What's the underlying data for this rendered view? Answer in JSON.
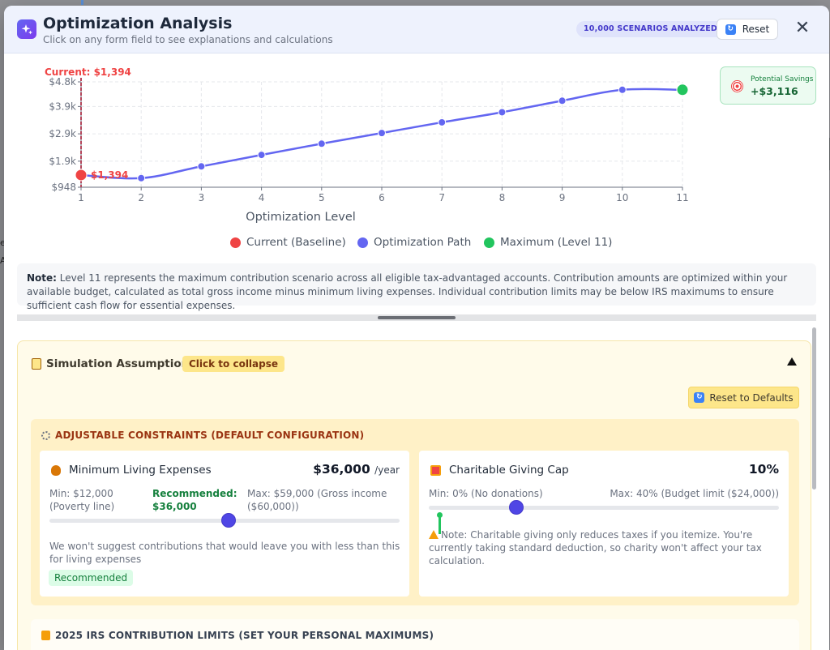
{
  "header": {
    "title": "Optimization Analysis",
    "subtitle": "Click on any form field to see explanations and calculations",
    "badge": "10,000 SCENARIOS ANALYZED",
    "reset_label": "Reset",
    "close_label": "✕"
  },
  "chart_data": {
    "type": "line",
    "xlabel": "Optimization Level",
    "x": [
      1,
      2,
      3,
      4,
      5,
      6,
      7,
      8,
      9,
      10,
      11
    ],
    "y_tick_labels": [
      "$948",
      "$1.9k",
      "$2.9k",
      "$3.9k",
      "$4.8k"
    ],
    "y_tick_values": [
      948,
      1900,
      2900,
      3900,
      4800
    ],
    "ylim": [
      948,
      4800
    ],
    "series": [
      {
        "name": "Optimization Path",
        "values": [
          1394,
          1280,
          1710,
          2130,
          2540,
          2930,
          3320,
          3690,
          4110,
          4510,
          4510
        ],
        "color": "#6366f1"
      }
    ],
    "current": {
      "label": "Current: $1,394",
      "point_label": "$1,394",
      "value": 1394,
      "x": 1,
      "color": "#ef4444"
    },
    "maximum": {
      "x": 11,
      "value": 4510,
      "color": "#22c55e"
    },
    "legend": [
      {
        "label": "Current (Baseline)",
        "color": "#ef4444"
      },
      {
        "label": "Optimization Path",
        "color": "#6366f1"
      },
      {
        "label": "Maximum (Level 11)",
        "color": "#22c55e"
      }
    ],
    "legend_position": "bottom",
    "grid": true
  },
  "savings": {
    "label": "Potential Savings",
    "value": "+$3,116"
  },
  "note": {
    "lead": "Note:",
    "text": " Level 11 represents the maximum contribution scenario across all eligible tax-advantaged accounts. Contribution amounts are optimized within your available budget, calculated as total gross income minus minimum living expenses. Individual contribution limits may be below IRS maximums to ensure sufficient cash flow for essential expenses."
  },
  "simulation": {
    "title": "Simulation Assumptions",
    "collapse_tag": "Click to collapse",
    "reset_defaults": "Reset to Defaults",
    "constraints_title": "ADJUSTABLE CONSTRAINTS (DEFAULT CONFIGURATION)",
    "living": {
      "name": "Minimum Living Expenses",
      "value": "$36,000",
      "unit": "/year",
      "min": "Min: $12,000 (Poverty line)",
      "recommended": "Recommended: $36,000",
      "max": "Max: $59,000 (Gross income ($60,000))",
      "slider_fraction": 0.511,
      "hint": "We won't suggest contributions that would leave you with less than this for living expenses",
      "pill": "Recommended"
    },
    "charity": {
      "name": "Charitable Giving Cap",
      "value": "10%",
      "min": "Min: 0% (No donations)",
      "max": "Max: 40% (Budget limit ($24,000))",
      "slider_fraction": 0.25,
      "note": "Note: Charitable giving only reduces taxes if you itemize. You're currently taking standard deduction, so charity won't affect your tax calculation."
    },
    "irs_title": "2025 IRS CONTRIBUTION LIMITS (SET YOUR PERSONAL MAXIMUMS)"
  },
  "backdrop": {
    "left_text_1": "e",
    "left_text_2": "A"
  }
}
